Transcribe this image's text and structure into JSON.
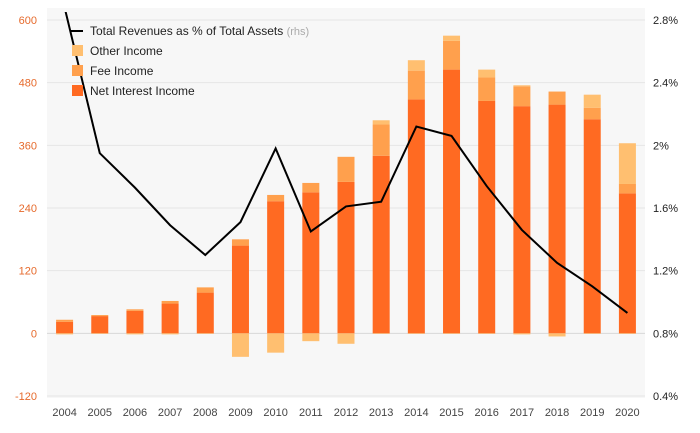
{
  "chart_data": {
    "type": "bar",
    "categories": [
      "2004",
      "2005",
      "2006",
      "2007",
      "2008",
      "2009",
      "2010",
      "2011",
      "2012",
      "2013",
      "2014",
      "2015",
      "2016",
      "2017",
      "2018",
      "2019",
      "2020"
    ],
    "series": [
      {
        "name": "Net Interest Income",
        "type": "bar",
        "axis": "left",
        "color": "#ff6a22",
        "values": [
          22,
          33,
          43,
          57,
          78,
          168,
          253,
          270,
          290,
          340,
          448,
          505,
          445,
          435,
          438,
          410,
          268
        ]
      },
      {
        "name": "Fee Income",
        "type": "bar",
        "axis": "left",
        "color": "#ffa04d",
        "values": [
          4,
          2,
          3,
          5,
          10,
          12,
          12,
          18,
          48,
          60,
          55,
          55,
          45,
          38,
          25,
          22,
          18
        ]
      },
      {
        "name": "Other Income",
        "type": "bar",
        "axis": "left",
        "color": "#ffbf70",
        "negative_values": [
          -2,
          -1,
          -2,
          -2,
          -1,
          -45,
          -37,
          -15,
          -20,
          -1,
          -1,
          -1,
          -1,
          -2,
          -6,
          -1,
          -1
        ],
        "values": [
          0,
          0,
          0,
          0,
          0,
          0,
          0,
          0,
          0,
          8,
          20,
          10,
          15,
          2,
          0,
          25,
          78
        ]
      },
      {
        "name": "Total Revenues as % of Total Assets",
        "type": "line",
        "axis": "right",
        "color": "#000000",
        "values": [
          2.88,
          1.95,
          1.73,
          1.49,
          1.3,
          1.51,
          1.98,
          1.45,
          1.61,
          1.64,
          2.12,
          2.06,
          1.74,
          1.46,
          1.25,
          1.1,
          0.93
        ]
      }
    ],
    "legend": {
      "position": "top-left",
      "items": [
        {
          "label": "Total Revenues as % of Total Assets",
          "suffix": "(rhs)",
          "marker": "line",
          "color": "#000000"
        },
        {
          "label": "Other Income",
          "marker": "square",
          "color": "#ffbf70"
        },
        {
          "label": "Fee Income",
          "marker": "square",
          "color": "#ffa04d"
        },
        {
          "label": "Net Interest Income",
          "marker": "square",
          "color": "#ff6a22"
        }
      ]
    },
    "y_left": {
      "min": -120,
      "max": 600,
      "ticks": [
        -120,
        0,
        120,
        240,
        360,
        480,
        600
      ],
      "tick_labels": [
        "-120",
        "0",
        "120",
        "240",
        "360",
        "480",
        "600"
      ],
      "color": "#e66a2c"
    },
    "y_right": {
      "min": 0.4,
      "max": 2.8,
      "ticks": [
        0.4,
        0.8,
        1.2,
        1.6,
        2.0,
        2.4,
        2.8
      ],
      "tick_labels": [
        "0.4%",
        "0.8%",
        "1.2%",
        "1.6%",
        "2%",
        "2.4%",
        "2.8%"
      ]
    },
    "grid": true,
    "title": "",
    "xlabel": "",
    "ylabel": ""
  }
}
